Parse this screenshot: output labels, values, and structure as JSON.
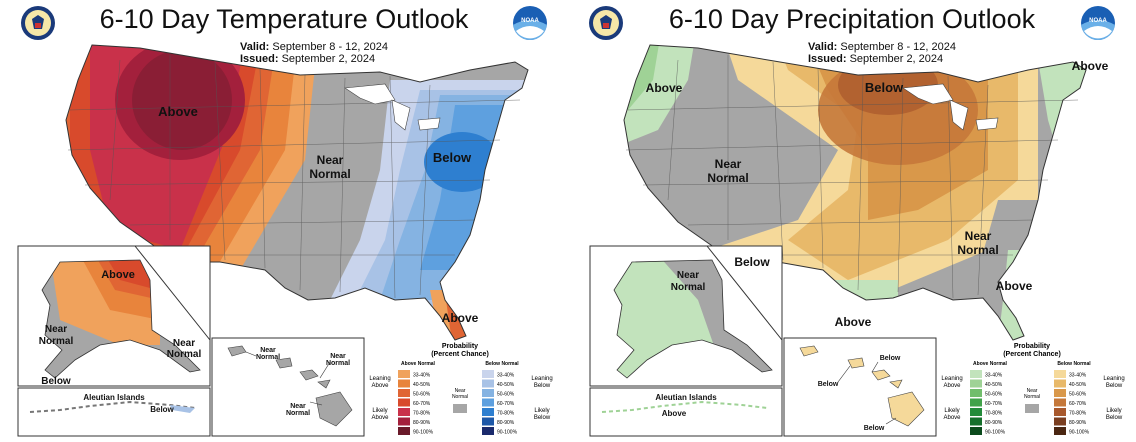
{
  "temperature": {
    "title": "6-10 Day Temperature Outlook",
    "valid_label": "Valid:",
    "valid_value": "September 8 - 12, 2024",
    "issued_label": "Issued:",
    "issued_value": "September 2, 2024",
    "labels": {
      "above_west": "Above",
      "near_normal_1": "Near",
      "near_normal_2": "Normal",
      "below_ne": "Below",
      "above_fl": "Above",
      "ak_above": "Above",
      "ak_near_1": "Near",
      "ak_near_2": "Normal",
      "ak_near2_1": "Near",
      "ak_near2_2": "Normal",
      "ak_below": "Below",
      "aleutian": "Aleutian Islands",
      "aleutian_below": "Below",
      "hi_near_a1": "Near",
      "hi_near_a2": "Normal",
      "hi_near_b1": "Near",
      "hi_near_b2": "Normal",
      "hi_near_c1": "Near",
      "hi_near_c2": "Normal"
    },
    "legend": {
      "title_1": "Probability",
      "title_2": "(Percent Chance)",
      "above_normal": "Above Normal",
      "below_normal": "Below Normal",
      "leaning_above_1": "Leaning",
      "leaning_above_2": "Above",
      "likely_above_1": "Likely",
      "likely_above_2": "Above",
      "near_1": "Near",
      "near_2": "Normal",
      "leaning_below_1": "Leaning",
      "leaning_below_2": "Below",
      "likely_below_1": "Likely",
      "likely_below_2": "Below",
      "ranges": [
        "33-40%",
        "40-50%",
        "50-60%",
        "60-70%",
        "70-80%",
        "80-90%",
        "90-100%"
      ],
      "above_colors": [
        "#f0a25c",
        "#e8843c",
        "#e06534",
        "#d84a2c",
        "#c9314a",
        "#a3203c",
        "#6a1a2a"
      ],
      "below_colors": [
        "#c9d4ec",
        "#a8c2e6",
        "#85b3e2",
        "#5ea0df",
        "#2e7fd0",
        "#1d58a8",
        "#1a2a6c"
      ],
      "near_color": "#a6a6a6"
    }
  },
  "precipitation": {
    "title": "6-10 Day Precipitation Outlook",
    "valid_label": "Valid:",
    "valid_value": "September 8 - 12, 2024",
    "issued_label": "Issued:",
    "issued_value": "September 2, 2024",
    "labels": {
      "above_nw": "Above",
      "near_normal_1": "Near",
      "near_normal_2": "Normal",
      "below_north": "Below",
      "above_ne": "Above",
      "below_sw": "Below",
      "near_se_1": "Near",
      "near_se_2": "Normal",
      "above_se": "Above",
      "above_tx": "Above",
      "ak_near_1": "Near",
      "ak_near_2": "Normal",
      "aleutian": "Aleutian Islands",
      "aleutian_above": "Above",
      "hi_below_a": "Below",
      "hi_below_b": "Below",
      "hi_below_c": "Below"
    },
    "legend": {
      "title_1": "Probability",
      "title_2": "(Percent Chance)",
      "above_normal": "Above Normal",
      "below_normal": "Below Normal",
      "leaning_above_1": "Leaning",
      "leaning_above_2": "Above",
      "likely_above_1": "Likely",
      "likely_above_2": "Above",
      "near_1": "Near",
      "near_2": "Normal",
      "leaning_below_1": "Leaning",
      "leaning_below_2": "Below",
      "likely_below_1": "Likely",
      "likely_below_2": "Below",
      "ranges": [
        "33-40%",
        "40-50%",
        "50-60%",
        "60-70%",
        "70-80%",
        "80-90%",
        "90-100%"
      ],
      "above_colors": [
        "#c2e3bc",
        "#9fd296",
        "#71bd6c",
        "#41a24a",
        "#238b3a",
        "#156f2c",
        "#0b4a1c"
      ],
      "below_colors": [
        "#f5d99a",
        "#e8b96a",
        "#d9984a",
        "#c5783a",
        "#a8582c",
        "#7a3e20",
        "#4a2612"
      ],
      "near_color": "#a6a6a6"
    }
  }
}
